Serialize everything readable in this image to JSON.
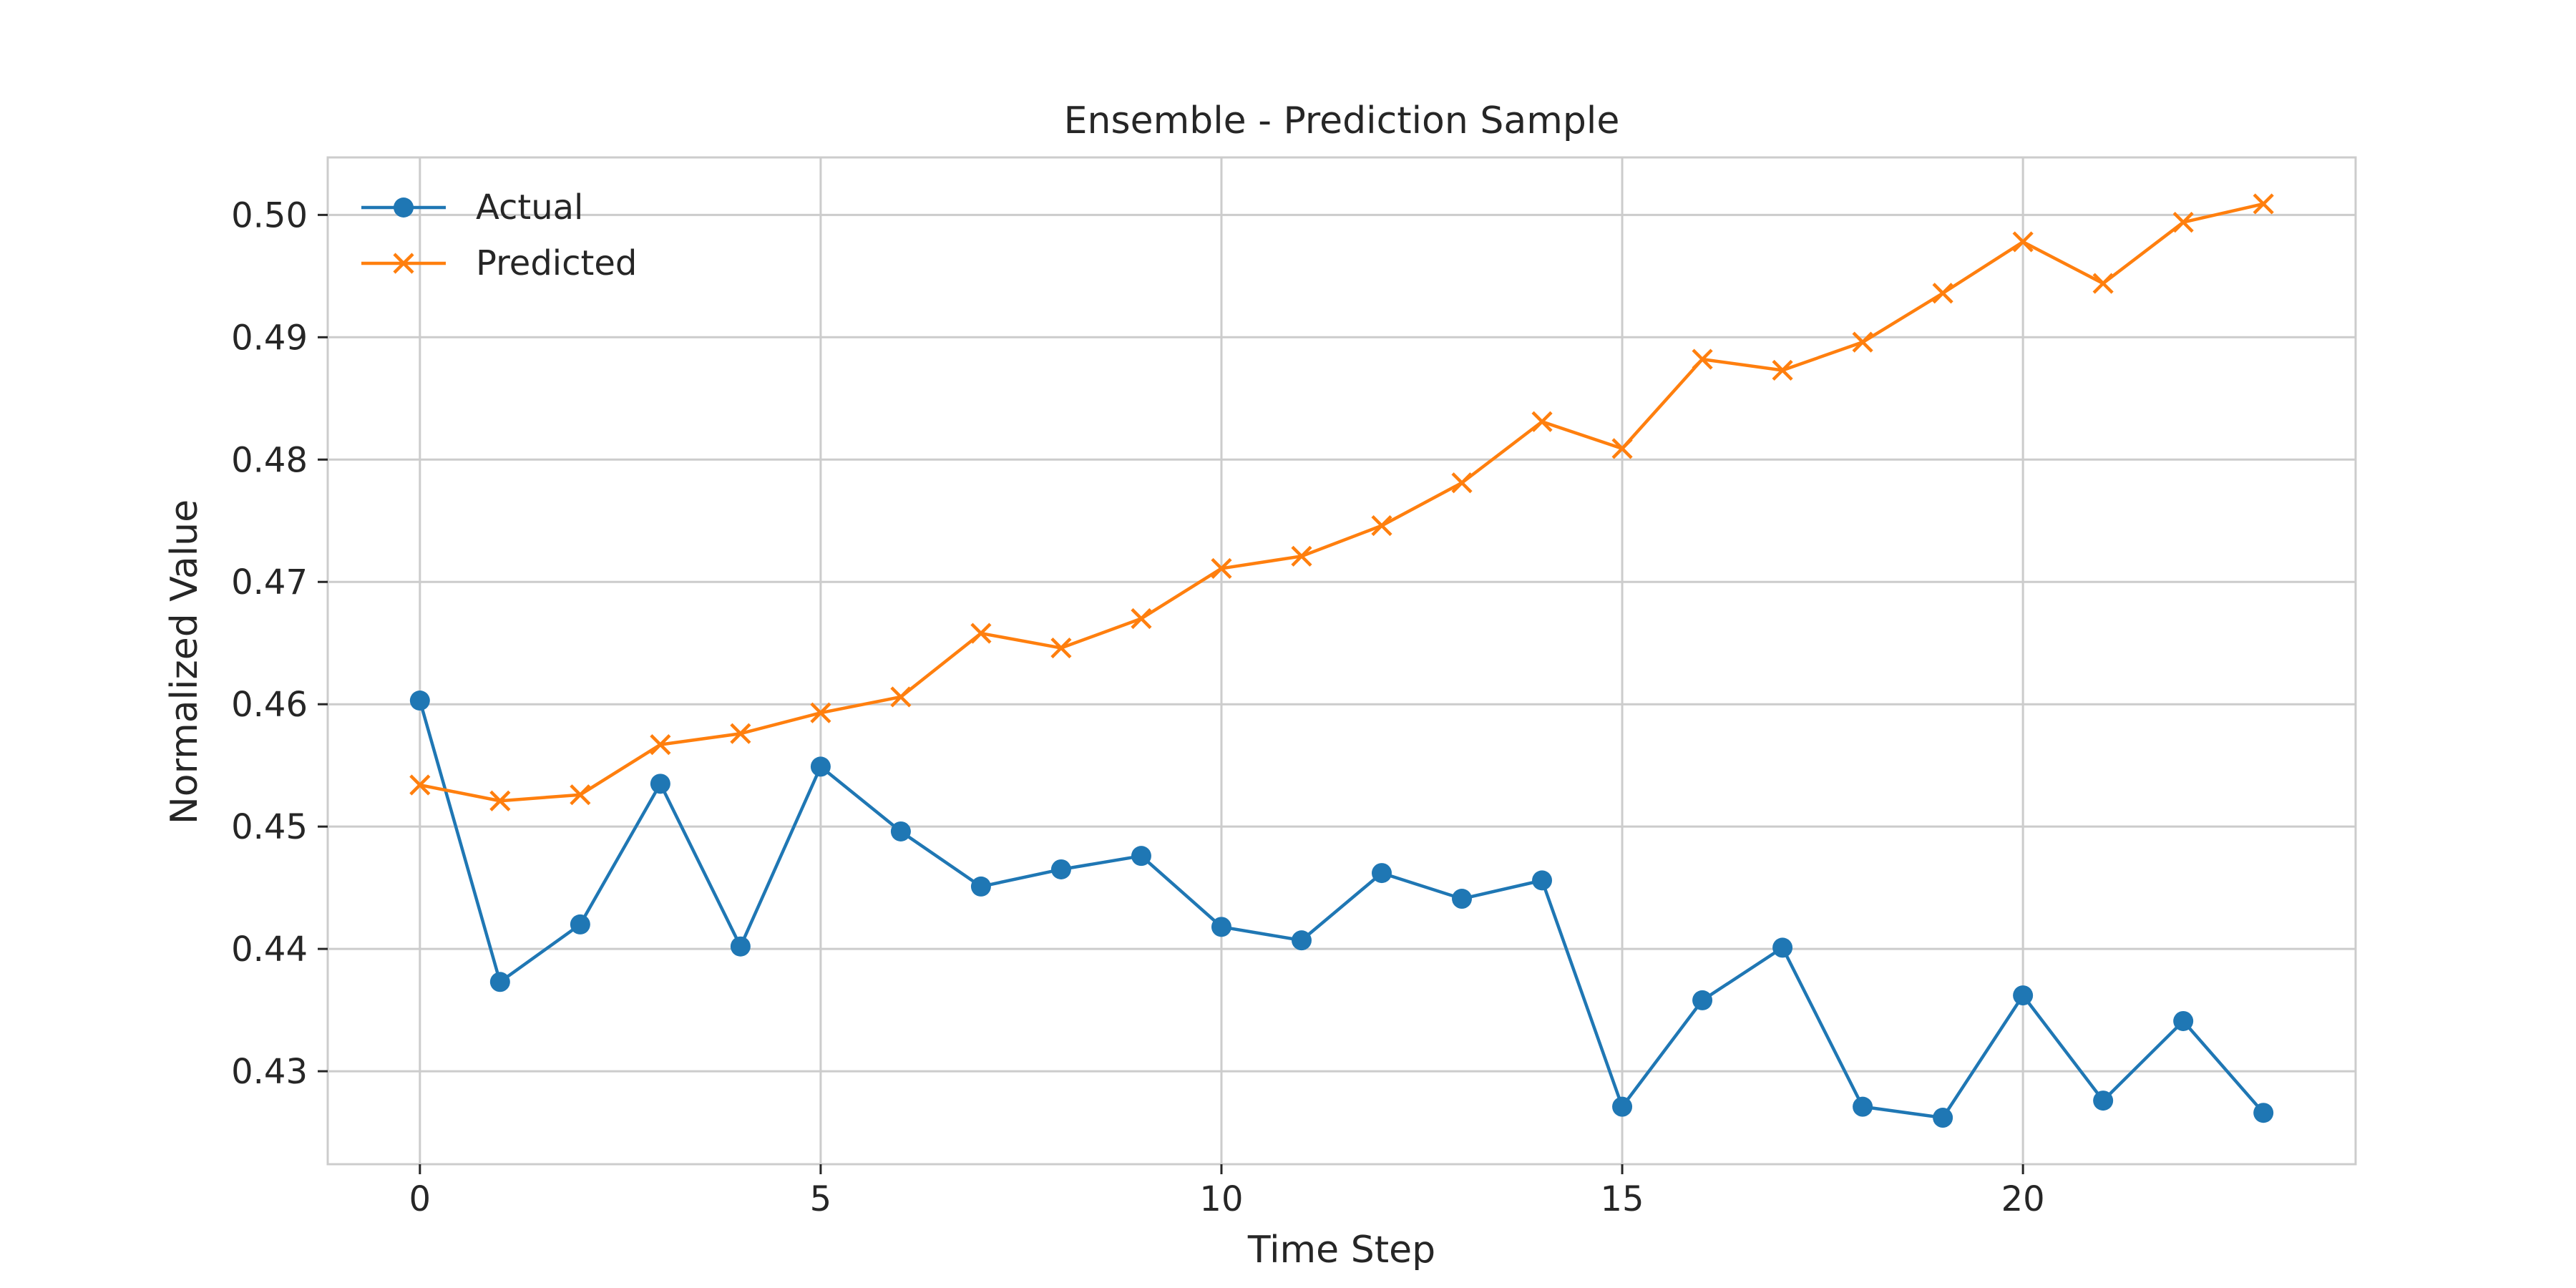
{
  "chart_data": {
    "type": "line",
    "title": "Ensemble - Prediction Sample",
    "xlabel": "Time Step",
    "ylabel": "Normalized Value",
    "x": [
      0,
      1,
      2,
      3,
      4,
      5,
      6,
      7,
      8,
      9,
      10,
      11,
      12,
      13,
      14,
      15,
      16,
      17,
      18,
      19,
      20,
      21,
      22,
      23
    ],
    "xlim": [
      -1.15,
      24.15
    ],
    "ylim": [
      0.4224,
      0.5047
    ],
    "xticks": [
      0,
      5,
      10,
      15,
      20
    ],
    "xtick_labels": [
      "0",
      "5",
      "10",
      "15",
      "20"
    ],
    "yticks": [
      0.43,
      0.44,
      0.45,
      0.46,
      0.47,
      0.48,
      0.49,
      0.5
    ],
    "ytick_labels": [
      "0.43",
      "0.44",
      "0.45",
      "0.46",
      "0.47",
      "0.48",
      "0.49",
      "0.50"
    ],
    "grid": true,
    "legend_position": "upper-left",
    "series": [
      {
        "name": "Actual",
        "color": "#1f77b4",
        "marker": "circle",
        "values": [
          0.4603,
          0.4373,
          0.442,
          0.4535,
          0.4402,
          0.4549,
          0.4496,
          0.4451,
          0.4465,
          0.4476,
          0.4418,
          0.4407,
          0.4462,
          0.4441,
          0.4456,
          0.4271,
          0.4358,
          0.4401,
          0.4271,
          0.4262,
          0.4362,
          0.4276,
          0.4341,
          0.4266
        ]
      },
      {
        "name": "Predicted",
        "color": "#ff7f0e",
        "marker": "x",
        "values": [
          0.4534,
          0.4521,
          0.4526,
          0.4567,
          0.4576,
          0.4593,
          0.4606,
          0.4658,
          0.4646,
          0.467,
          0.4711,
          0.4721,
          0.4746,
          0.4781,
          0.4831,
          0.4809,
          0.4882,
          0.4873,
          0.4896,
          0.4936,
          0.4978,
          0.4944,
          0.4994,
          0.5009
        ]
      }
    ]
  }
}
